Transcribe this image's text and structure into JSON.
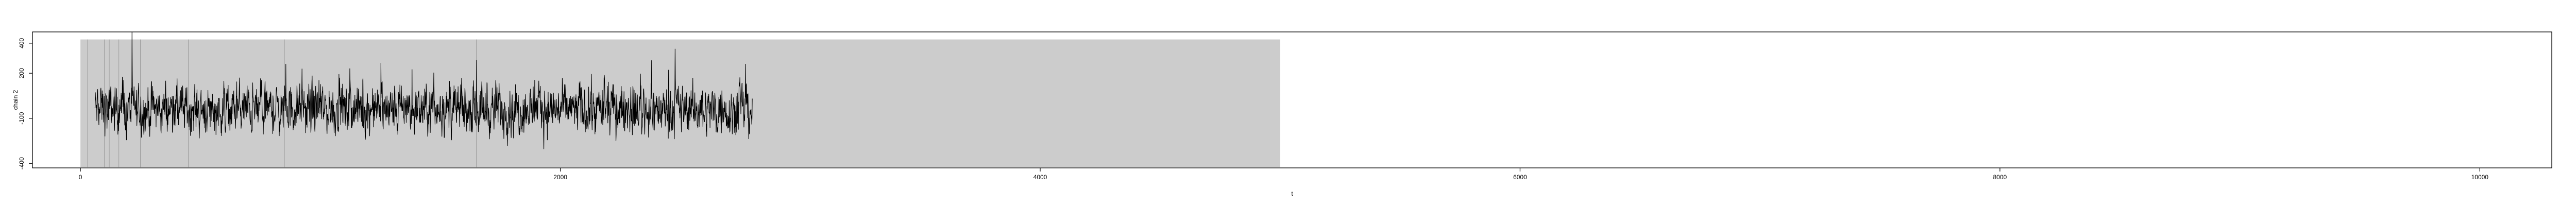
{
  "chart_data": {
    "type": "line",
    "title": "",
    "xlabel": "t",
    "ylabel": "chain 2",
    "xlim": [
      -200,
      10300
    ],
    "ylim": [
      -430,
      475
    ],
    "x_ticks": [
      0,
      2000,
      4000,
      6000,
      8000,
      10000
    ],
    "x_tick_labels": [
      "0",
      "2000",
      "4000",
      "6000",
      "8000",
      "10000"
    ],
    "y_ticks": [
      -400,
      -100,
      200,
      400
    ],
    "y_tick_labels": [
      "-400",
      "-100",
      "200",
      "400"
    ],
    "grid": false,
    "legend": "none",
    "background_band": {
      "x_start": 0,
      "x_end": 5000,
      "y_start": -425,
      "y_end": 425,
      "color": "#cccccc"
    },
    "vertical_markers": [
      30,
      100,
      120,
      160,
      250,
      450,
      850,
      1650
    ],
    "series": [
      {
        "color": "#000000",
        "x_start": 60,
        "x_end": 2800,
        "baseline": -40,
        "spread": 150,
        "clip_min": -330,
        "clip_max": 475,
        "samples": 2600
      }
    ]
  }
}
